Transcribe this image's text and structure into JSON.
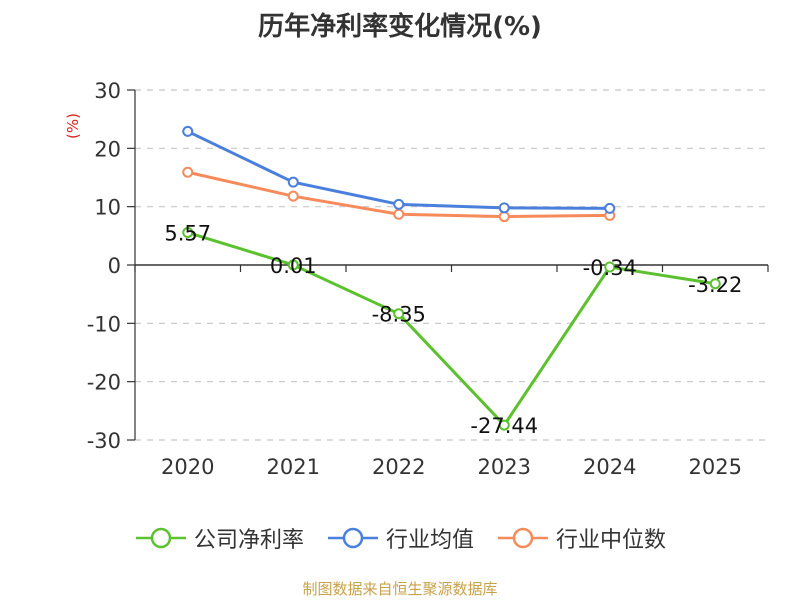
{
  "chart_data": {
    "type": "line",
    "title": "历年净利率变化情况(%)",
    "ylabel": "(%)",
    "categories": [
      "2020",
      "2021",
      "2022",
      "2023",
      "2024",
      "2025"
    ],
    "ylim": [
      -30,
      30
    ],
    "yticks": [
      30,
      20,
      10,
      0,
      -10,
      -20,
      -30
    ],
    "grid": true,
    "legend_position": "bottom",
    "series": [
      {
        "name": "公司净利率",
        "color": "#5cc12f",
        "values": [
          5.57,
          0.01,
          -8.35,
          -27.44,
          -0.34,
          -3.22
        ],
        "labels": [
          "5.57",
          "0.01",
          "-8.35",
          "-27.44",
          "-0.34",
          "-3.22"
        ]
      },
      {
        "name": "行业均值",
        "color": "#4a7fdb",
        "values": [
          22.9,
          14.2,
          10.4,
          9.8,
          9.7,
          null
        ]
      },
      {
        "name": "行业中位数",
        "color": "#f78a5a",
        "values": [
          15.9,
          11.8,
          8.7,
          8.3,
          8.5,
          null
        ]
      }
    ]
  },
  "source_note": "制图数据来自恒生聚源数据库"
}
